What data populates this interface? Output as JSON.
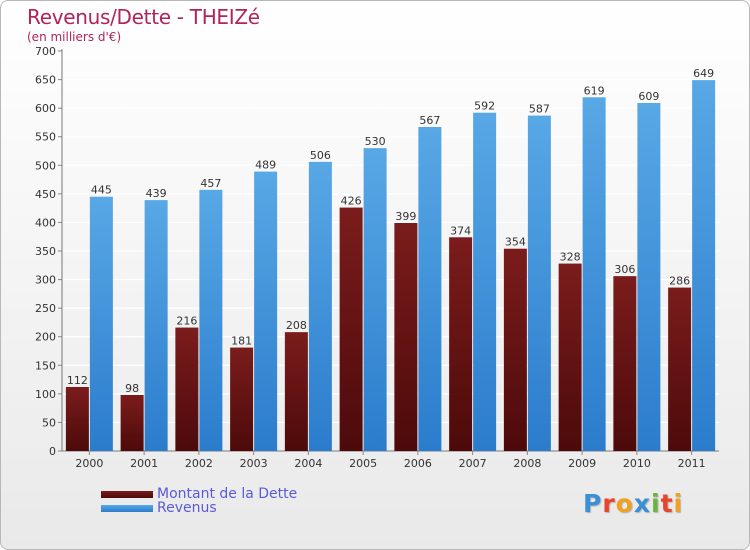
{
  "header": {
    "title": "Revenus/Dette - THEIZé",
    "subtitle": "(en milliers d'€)"
  },
  "legend": {
    "debt_label": "Montant de la Dette",
    "revenue_label": "Revenus"
  },
  "logo": {
    "text": "Proxiti",
    "letters": [
      {
        "ch": "P",
        "color": "#3a8fd6"
      },
      {
        "ch": "r",
        "color": "#e8452c"
      },
      {
        "ch": "o",
        "color": "#f0a11e"
      },
      {
        "ch": "x",
        "color": "#3a8fd6"
      },
      {
        "ch": "i",
        "color": "#6cb33f"
      },
      {
        "ch": "t",
        "color": "#e8452c"
      },
      {
        "ch": "i",
        "color": "#f0a11e"
      }
    ]
  },
  "colors": {
    "debt": "#7b1c1c",
    "debt_dark": "#4d0a0a",
    "revenue": "#58a8e6",
    "revenue_dark": "#2b7ccc",
    "title": "#b0245a",
    "legend_text": "#5b5bd6"
  },
  "chart_data": {
    "type": "bar",
    "categories": [
      "2000",
      "2001",
      "2002",
      "2003",
      "2004",
      "2005",
      "2006",
      "2007",
      "2008",
      "2009",
      "2010",
      "2011"
    ],
    "series": [
      {
        "name": "Montant de la Dette",
        "values": [
          112,
          98,
          216,
          181,
          208,
          426,
          399,
          374,
          354,
          328,
          306,
          286
        ]
      },
      {
        "name": "Revenus",
        "values": [
          445,
          439,
          457,
          489,
          506,
          530,
          567,
          592,
          587,
          619,
          609,
          649
        ]
      }
    ],
    "ylim": [
      0,
      700
    ],
    "yticks": [
      0,
      50,
      100,
      150,
      200,
      250,
      300,
      350,
      400,
      450,
      500,
      550,
      600,
      650,
      700
    ],
    "grid": true
  }
}
